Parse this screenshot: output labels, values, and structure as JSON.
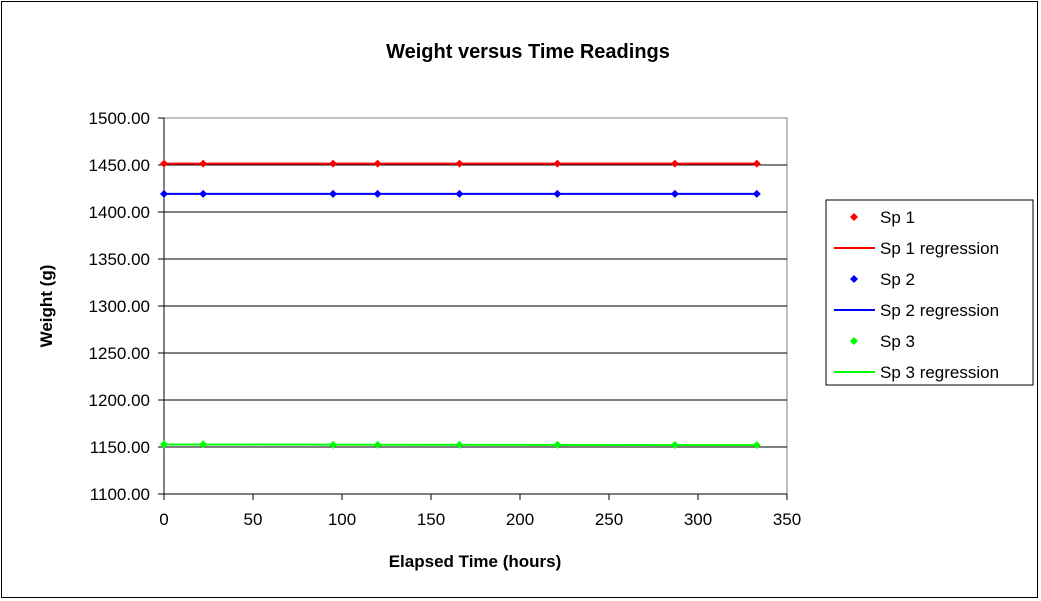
{
  "chart_data": {
    "type": "scatter",
    "title": "Weight versus Time Readings",
    "xlabel": "Elapsed Time (hours)",
    "ylabel": "Weight (g)",
    "xlim": [
      0,
      350
    ],
    "ylim": [
      1100,
      1500
    ],
    "x_ticks": [
      "0",
      "50",
      "100",
      "150",
      "200",
      "250",
      "300",
      "350"
    ],
    "y_ticks": [
      "1100.00",
      "1150.00",
      "1200.00",
      "1250.00",
      "1300.00",
      "1350.00",
      "1400.00",
      "1450.00",
      "1500.00"
    ],
    "grid": "horizontal",
    "legend_position": "right",
    "x": [
      0,
      22,
      95,
      120,
      166,
      221,
      287,
      333
    ],
    "series": [
      {
        "name": "Sp 1",
        "color": "#ff0000",
        "marker": "diamond",
        "values": [
          1451.5,
          1451.5,
          1451.5,
          1451.5,
          1451.5,
          1451.5,
          1451.5,
          1451.5
        ]
      },
      {
        "name": "Sp 2",
        "color": "#0000ff",
        "marker": "diamond",
        "values": [
          1419.3,
          1419.3,
          1419.3,
          1419.3,
          1419.3,
          1419.3,
          1419.3,
          1419.3
        ]
      },
      {
        "name": "Sp 3",
        "color": "#00ff00",
        "marker": "diamond",
        "values": [
          1152.8,
          1152.8,
          1152.3,
          1152.2,
          1152.2,
          1152.2,
          1152.1,
          1152.0
        ]
      }
    ],
    "regressions": [
      {
        "name": "Sp 1 regression",
        "color": "#ff0000",
        "x": [
          0,
          333
        ],
        "y": [
          1451.5,
          1451.5
        ]
      },
      {
        "name": "Sp 2 regression",
        "color": "#0000ff",
        "x": [
          0,
          333
        ],
        "y": [
          1419.3,
          1419.3
        ]
      },
      {
        "name": "Sp 3 regression",
        "color": "#00ff00",
        "x": [
          0,
          333
        ],
        "y": [
          1152.7,
          1152.0
        ]
      }
    ],
    "legend": [
      "Sp 1",
      "Sp 1 regression",
      "Sp 2",
      "Sp 2 regression",
      "Sp 3",
      "Sp 3 regression"
    ]
  }
}
